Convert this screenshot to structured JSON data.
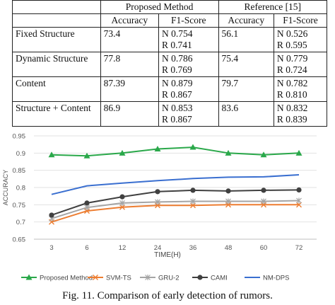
{
  "table": {
    "group_headers": [
      "Proposed Method",
      "Reference [15]"
    ],
    "sub_headers": [
      "Accuracy",
      "F1-Score",
      "Accuracy",
      "F1-Score"
    ],
    "rows": [
      {
        "label": "Fixed Structure",
        "acc": "73.4",
        "f1_n": "N 0.754",
        "f1_r": "R 0.741",
        "ref_acc": "56.1",
        "ref_f1_n": "N 0.526",
        "ref_f1_r": "R 0.595"
      },
      {
        "label": "Dynamic Structure",
        "acc": "77.8",
        "f1_n": "N 0.786",
        "f1_r": "R 0.769",
        "ref_acc": "75.4",
        "ref_f1_n": "N 0.779",
        "ref_f1_r": "R 0.724"
      },
      {
        "label": "Content",
        "acc": "87.39",
        "f1_n": "N 0.879",
        "f1_r": "R 0.867",
        "ref_acc": "79.7",
        "ref_f1_n": "N 0.782",
        "ref_f1_r": "R 0.810"
      },
      {
        "label": "Structure + Content",
        "acc": "86.9",
        "f1_n": "N 0.853",
        "f1_r": "R 0.867",
        "ref_acc": "83.6",
        "ref_f1_n": "N 0.832",
        "ref_f1_r": "R 0.839"
      }
    ]
  },
  "chart_data": {
    "type": "line",
    "x": [
      3,
      6,
      12,
      24,
      36,
      48,
      60,
      72
    ],
    "xlabel": "TIME(H)",
    "ylabel": "ACCURACY",
    "ylim": [
      0.65,
      0.95
    ],
    "yticks": [
      "0.65",
      "0.7",
      "0.75",
      "0.8",
      "0.85",
      "0.9",
      "0.95"
    ],
    "grid": true,
    "legend": "bottom",
    "series": [
      {
        "name": "Proposed Method",
        "color": "#2aa84a",
        "marker": "triangle",
        "values": [
          0.895,
          0.892,
          0.9,
          0.912,
          0.917,
          0.9,
          0.895,
          0.9
        ]
      },
      {
        "name": "SVM-TS",
        "color": "#ed7d31",
        "marker": "x",
        "values": [
          0.7,
          0.732,
          0.743,
          0.748,
          0.748,
          0.75,
          0.75,
          0.75
        ]
      },
      {
        "name": "GRU-2",
        "color": "#a5a5a5",
        "marker": "asterisk",
        "values": [
          0.71,
          0.742,
          0.755,
          0.758,
          0.76,
          0.76,
          0.76,
          0.762
        ]
      },
      {
        "name": "CAMI",
        "color": "#404040",
        "marker": "circle",
        "values": [
          0.72,
          0.755,
          0.773,
          0.788,
          0.792,
          0.79,
          0.792,
          0.793
        ]
      },
      {
        "name": "NM-DPS",
        "color": "#3a6fd0",
        "marker": "none",
        "values": [
          0.78,
          0.805,
          0.813,
          0.82,
          0.826,
          0.83,
          0.831,
          0.837
        ]
      }
    ]
  },
  "caption": "Fig. 11.    Comparison of early detection of rumors."
}
